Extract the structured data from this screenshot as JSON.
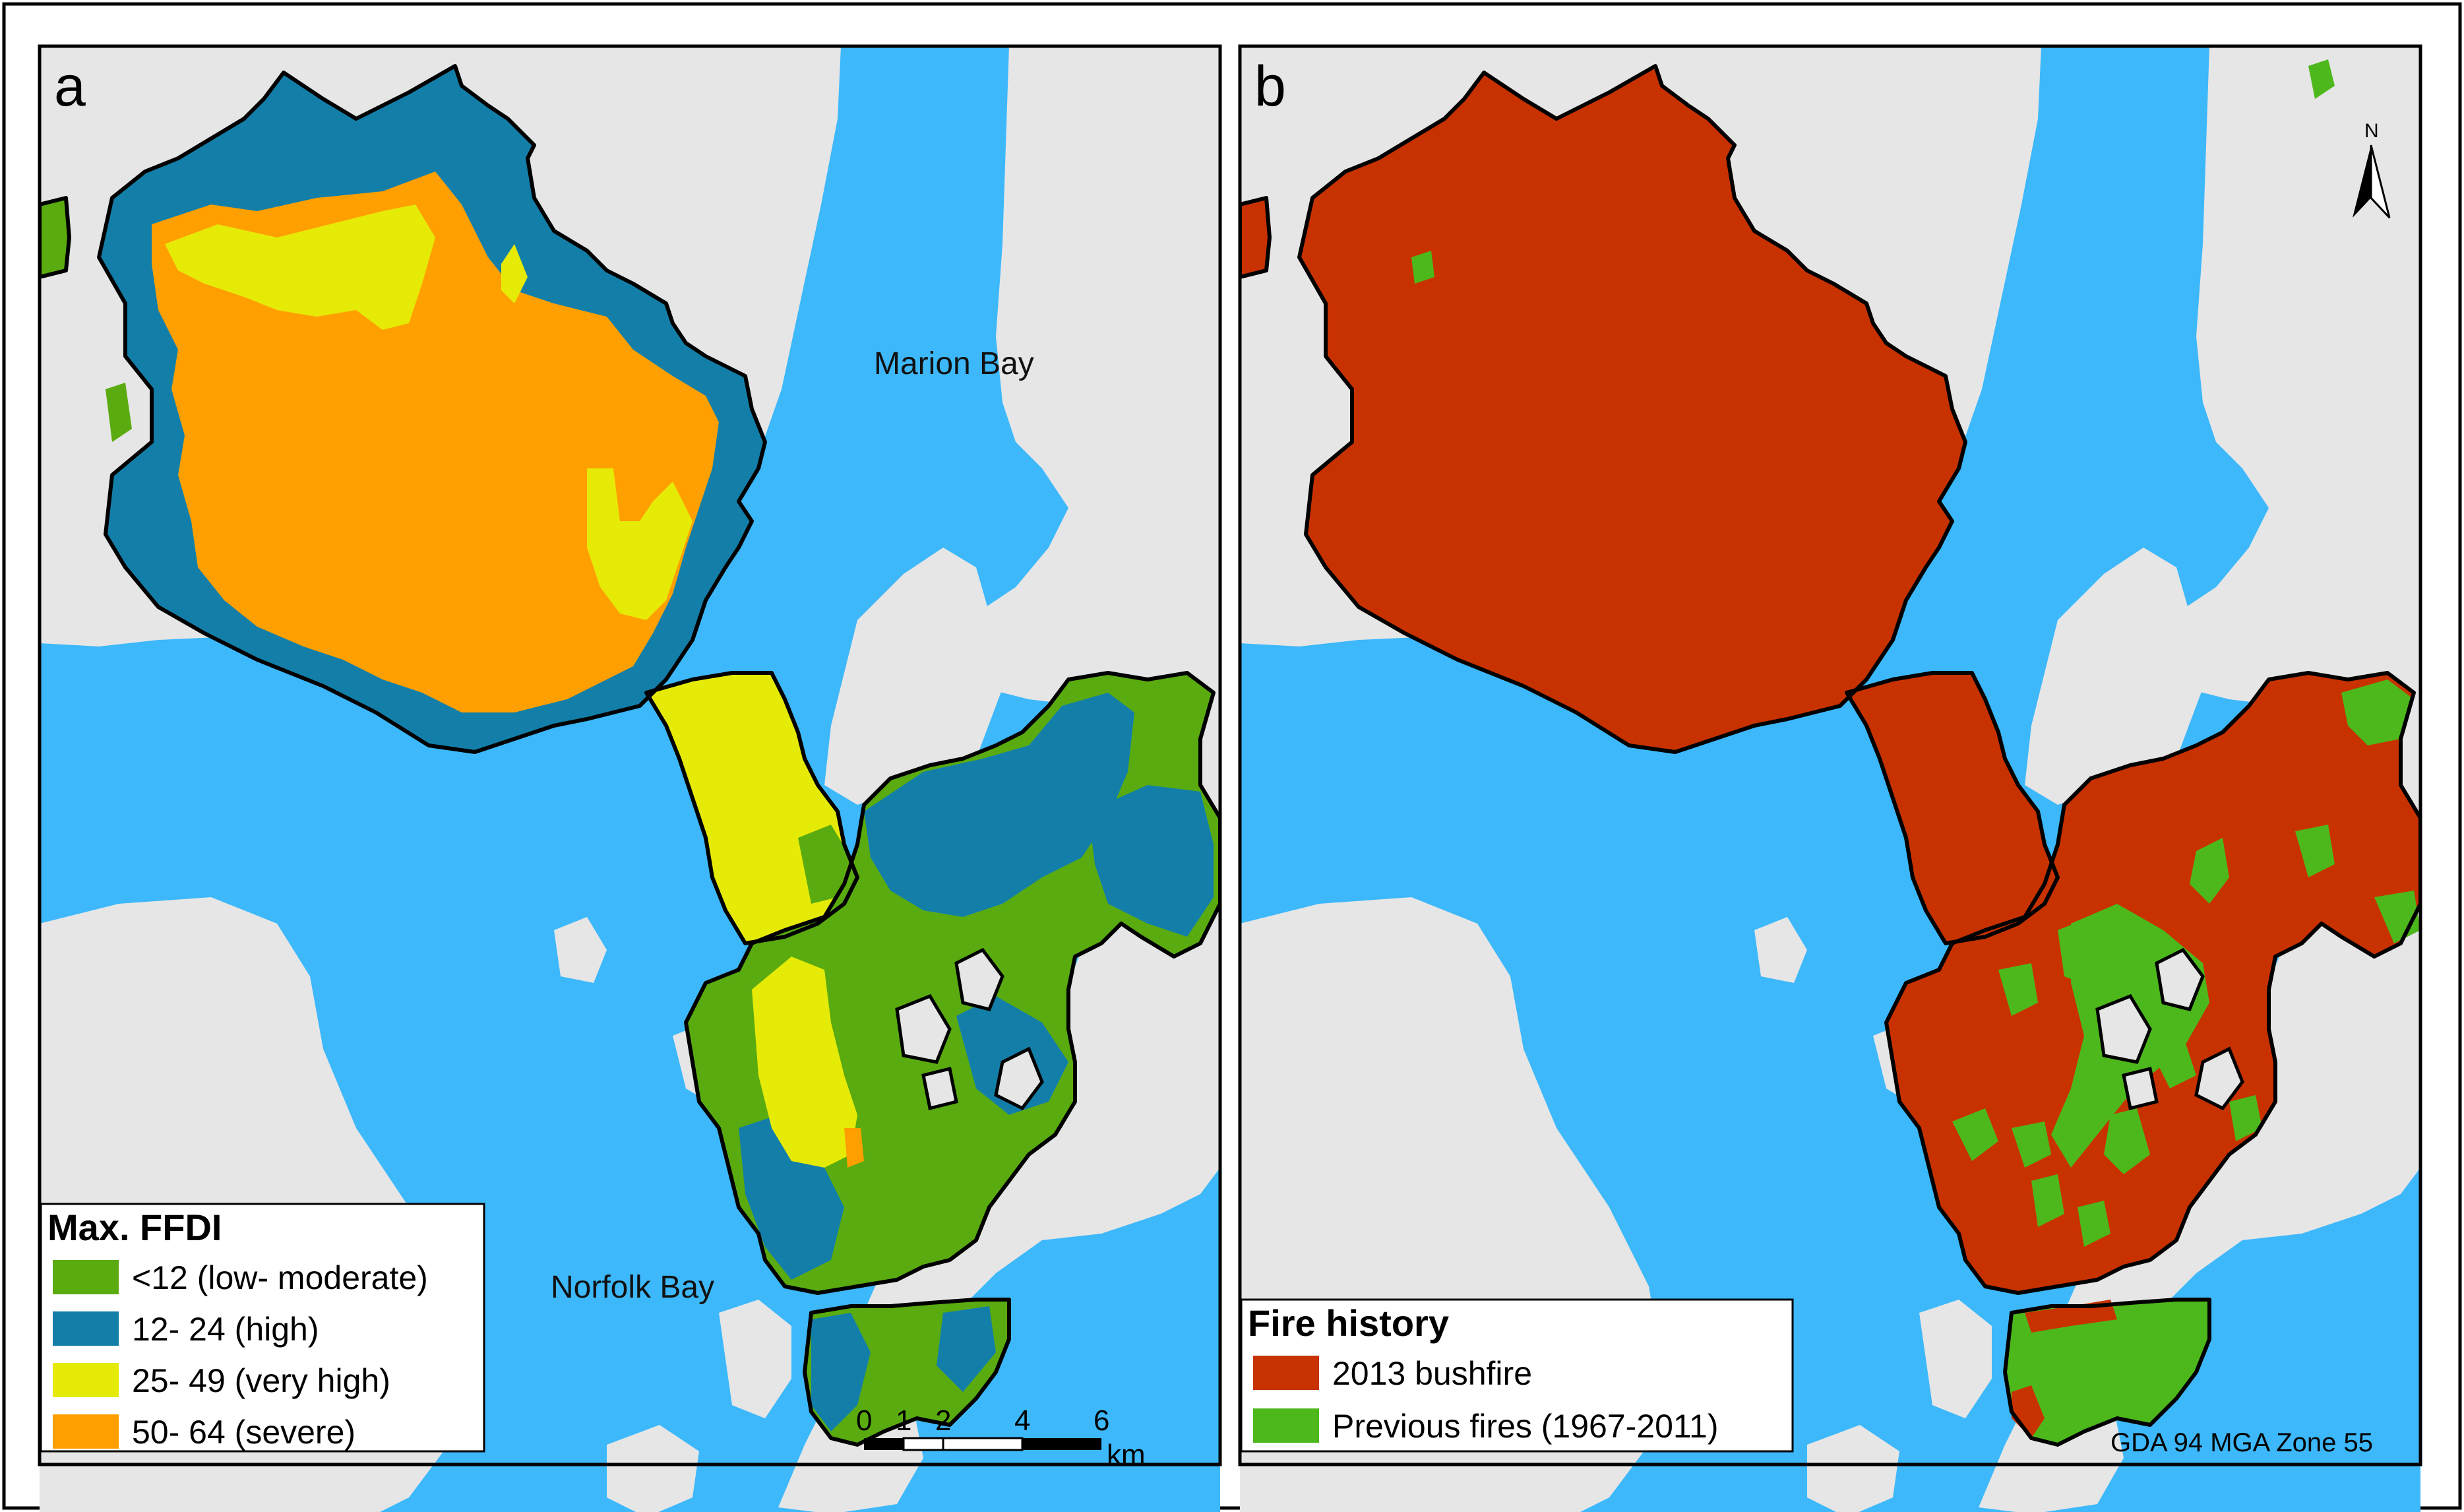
{
  "colors": {
    "water": "#3db8fb",
    "land": "#e6e6e6",
    "ffdi_low_moderate": "#5aab0f",
    "ffdi_high": "#137fa9",
    "ffdi_very_high": "#e6ea07",
    "ffdi_severe": "#ff9f00",
    "bushfire_2013": "#c83200",
    "previous_fires": "#4db81b",
    "outline": "#000000"
  },
  "panel_a": {
    "letter": "a",
    "labels": {
      "marion_bay": "Marion Bay",
      "norfolk_bay": "Norfolk Bay"
    },
    "legend": {
      "title": "Max. FFDI",
      "items": [
        {
          "label": "<12 (low- moderate)",
          "color": "#5aab0f"
        },
        {
          "label": "12- 24 (high)",
          "color": "#137fa9"
        },
        {
          "label": "25- 49 (very high)",
          "color": "#e6ea07"
        },
        {
          "label": "50- 64 (severe)",
          "color": "#ff9f00"
        }
      ]
    },
    "scale_bar": {
      "ticks": [
        "0",
        "1",
        "2",
        "4",
        "6"
      ],
      "unit": "km"
    }
  },
  "panel_b": {
    "letter": "b",
    "legend": {
      "title": "Fire history",
      "items": [
        {
          "label": "2013 bushfire",
          "color": "#c83200"
        },
        {
          "label": "Previous fires (1967-2011)",
          "color": "#4db81b"
        }
      ]
    },
    "north_arrow": "N",
    "projection": "GDA 94 MGA Zone 55"
  }
}
